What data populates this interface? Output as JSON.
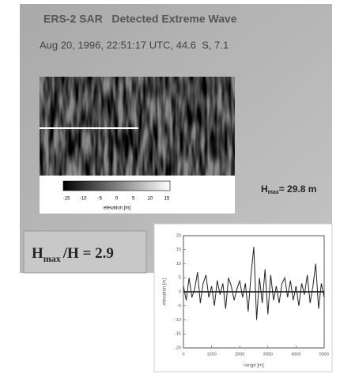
{
  "header": {
    "title": "ERS-2 SAR   Detected Extreme Wave",
    "subtitle": "Aug 20, 1996, 22:51:17 UTC, 44.6  S, 7.1"
  },
  "colorbar": {
    "ticks": [
      -15,
      -10,
      -5,
      0,
      5,
      10,
      15
    ],
    "label": "elevation [m]"
  },
  "hmax": {
    "symbol": "H",
    "sub": "max",
    "text": "= 29.8 m"
  },
  "ratio": {
    "symbol": "H",
    "sub": "max",
    "text": "/H = 2.9"
  },
  "chart_data": {
    "type": "line",
    "xlabel": "range [m]",
    "ylabel": "elevation [m]",
    "x": [
      0,
      100,
      200,
      300,
      400,
      500,
      600,
      700,
      800,
      900,
      1000,
      1100,
      1200,
      1300,
      1400,
      1500,
      1600,
      1700,
      1800,
      1900,
      2000,
      2100,
      2200,
      2300,
      2400,
      2500,
      2600,
      2700,
      2800,
      2900,
      3000,
      3100,
      3200,
      3300,
      3400,
      3500,
      3600,
      3700,
      3800,
      3900,
      4000,
      4100,
      4200,
      4300,
      4400,
      4500,
      4600,
      4700,
      4800,
      4900,
      5000
    ],
    "values": [
      2,
      -3,
      5,
      -2,
      1,
      7,
      -4,
      3,
      6,
      -2,
      2,
      -5,
      4,
      -1,
      3,
      -6,
      5,
      2,
      -3,
      1,
      4,
      -2,
      3,
      -7,
      6,
      16,
      -10,
      5,
      -4,
      8,
      -8,
      6,
      -3,
      2,
      -4,
      3,
      5,
      -2,
      4,
      -3,
      2,
      -5,
      3,
      -1,
      6,
      -4,
      2,
      10,
      -6,
      3,
      -2
    ],
    "color": "#222222",
    "xlim": [
      0,
      5000
    ],
    "xticks": [
      0,
      1000,
      2000,
      3000,
      4000,
      5000
    ],
    "ylim": [
      -20,
      20
    ],
    "yticks": [
      -20,
      -15,
      -10,
      -5,
      0,
      5,
      10,
      15,
      20
    ]
  }
}
